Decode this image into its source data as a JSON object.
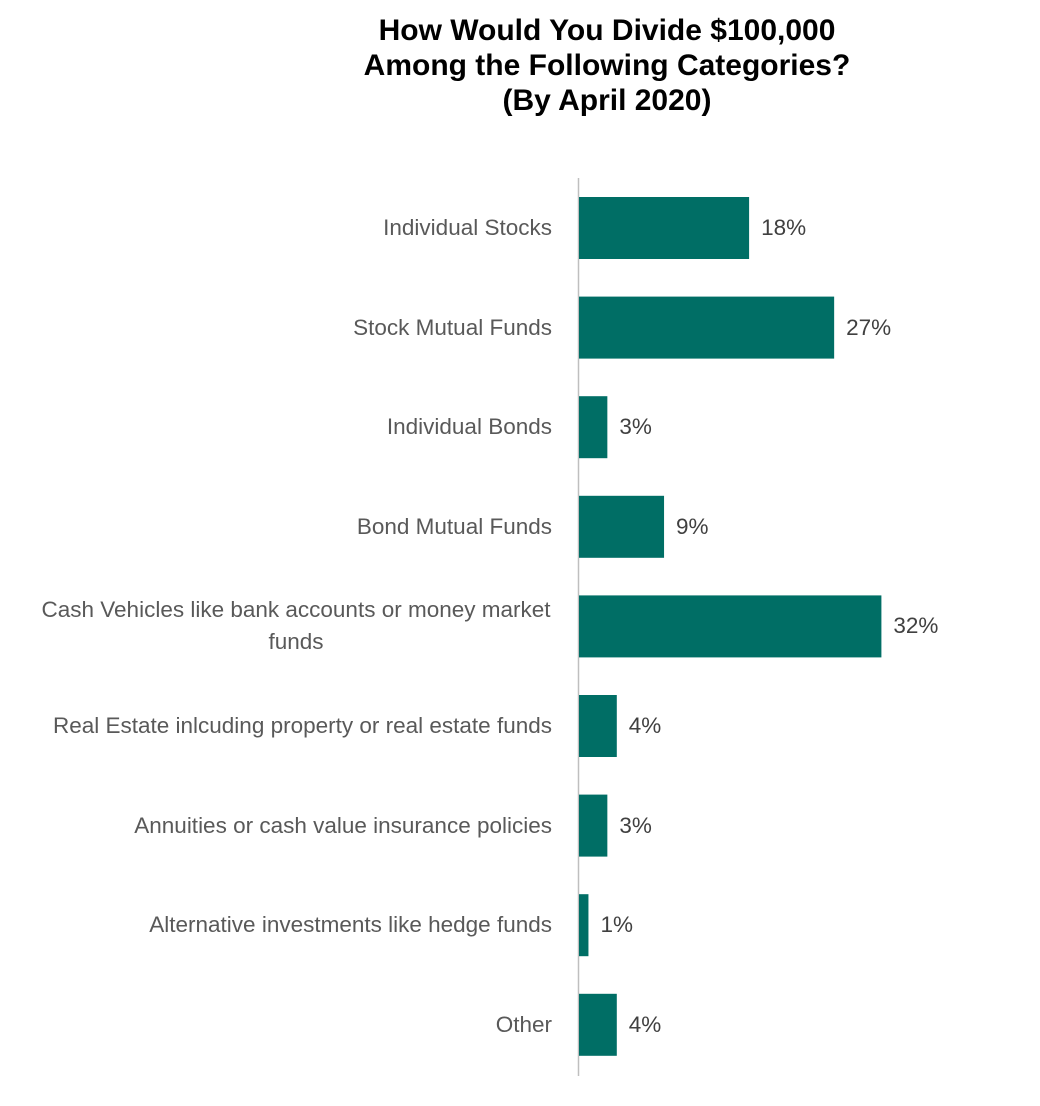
{
  "chart_data": {
    "type": "bar",
    "orientation": "horizontal",
    "title": [
      "How Would You Divide $100,000",
      "Among the Following Categories?",
      "(By April 2020)"
    ],
    "categories": [
      "Individual Stocks",
      "Stock Mutual Funds",
      "Individual Bonds",
      "Bond Mutual Funds",
      "Cash Vehicles like bank accounts or money market funds",
      "Real Estate inlcuding property or real estate funds",
      "Annuities or cash value insurance policies",
      "Alternative investments like hedge funds",
      "Other"
    ],
    "values": [
      18,
      27,
      3,
      9,
      32,
      4,
      3,
      1,
      4
    ],
    "value_labels": [
      "18%",
      "27%",
      "3%",
      "9%",
      "32%",
      "4%",
      "3%",
      "1%",
      "4%"
    ],
    "color": "#006e65"
  }
}
